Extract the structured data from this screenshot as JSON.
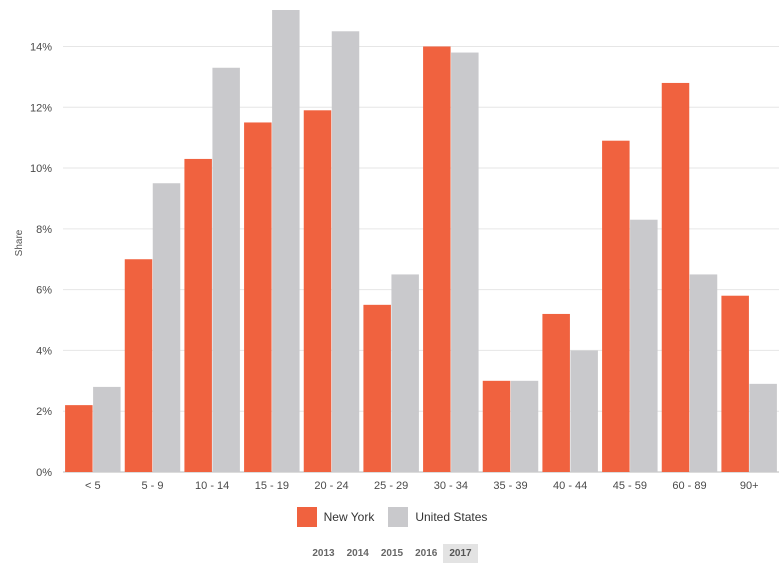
{
  "chart_data": {
    "type": "bar",
    "categories": [
      "< 5",
      "5 - 9",
      "10 - 14",
      "15 - 19",
      "20 - 24",
      "25 - 29",
      "30 - 34",
      "35 - 39",
      "40 - 44",
      "45 - 59",
      "60 - 89",
      "90+"
    ],
    "series": [
      {
        "name": "New York",
        "color": "#f0623f",
        "values": [
          2.2,
          7.0,
          10.3,
          11.5,
          11.9,
          5.5,
          14.0,
          3.0,
          5.2,
          10.9,
          12.8,
          5.8
        ]
      },
      {
        "name": "United States",
        "color": "#c9c9cc",
        "values": [
          2.8,
          9.5,
          13.3,
          15.2,
          14.5,
          6.5,
          13.8,
          3.0,
          4.0,
          8.3,
          6.5,
          2.9
        ]
      }
    ],
    "ylabel": "Share",
    "ylim": [
      0,
      15.2
    ],
    "yticks": [
      0,
      2,
      4,
      6,
      8,
      10,
      12,
      14
    ],
    "ytick_labels": [
      "0%",
      "2%",
      "4%",
      "6%",
      "8%",
      "10%",
      "12%",
      "14%"
    ],
    "grid": true,
    "legend_position": "bottom-center"
  },
  "legend": {
    "new_york": "New York",
    "united_states": "United States"
  },
  "years": [
    "2013",
    "2014",
    "2015",
    "2016",
    "2017"
  ],
  "selected_year": "2017"
}
